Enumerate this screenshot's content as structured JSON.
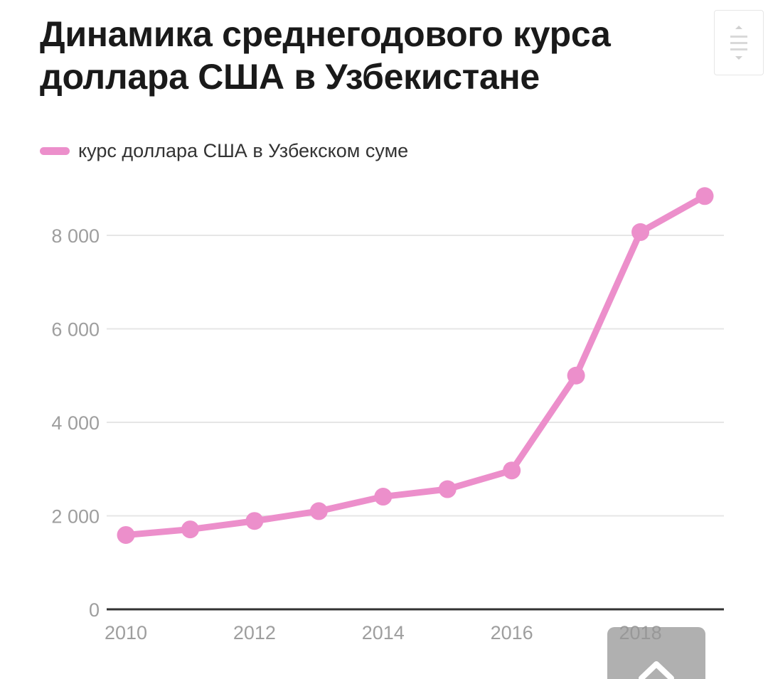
{
  "title": "Динамика среднегодового курса доллара США в Узбекистане",
  "legend": {
    "label": "курс доллара США в Узбекском суме"
  },
  "colors": {
    "series": "#ec8fcb",
    "grid": "#e6e6e6",
    "axis": "#333333",
    "tick_text": "#9e9e9e"
  },
  "icons": {
    "menu": "hamburger-menu-icon",
    "scroll_top": "chevron-up-icon"
  },
  "chart_data": {
    "type": "line",
    "title": "Динамика среднегодового курса доллара США в Узбекистане",
    "xlabel": "",
    "ylabel": "",
    "x": [
      2010,
      2011,
      2012,
      2013,
      2014,
      2015,
      2016,
      2017,
      2018,
      2019
    ],
    "xticks": [
      "2010",
      "2012",
      "2014",
      "2016",
      "2018"
    ],
    "xtick_values": [
      2010,
      2012,
      2014,
      2016,
      2018
    ],
    "yticks": [
      "0",
      "2 000",
      "4 000",
      "6 000",
      "8 000"
    ],
    "ytick_values": [
      0,
      2000,
      4000,
      6000,
      8000
    ],
    "ylim": [
      0,
      8800
    ],
    "xlim": [
      2010,
      2019
    ],
    "grid": true,
    "legend_position": "top-left",
    "series": [
      {
        "name": "курс доллара США в Узбекском суме",
        "values": [
          1590,
          1710,
          1890,
          2100,
          2410,
          2570,
          2970,
          5000,
          8070,
          8840
        ]
      }
    ]
  }
}
